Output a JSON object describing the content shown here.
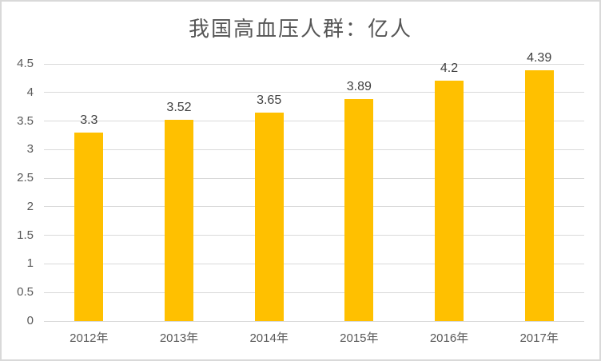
{
  "chart_data": {
    "type": "bar",
    "title": "我国高血压人群：亿人",
    "categories": [
      "2012年",
      "2013年",
      "2014年",
      "2015年",
      "2016年",
      "2017年"
    ],
    "values": [
      3.3,
      3.52,
      3.65,
      3.89,
      4.2,
      4.39
    ],
    "data_labels": [
      "3.3",
      "3.52",
      "3.65",
      "3.89",
      "4.2",
      "4.39"
    ],
    "xlabel": "",
    "ylabel": "",
    "ylim": [
      0,
      4.5
    ],
    "ytick_step": 0.5,
    "yticks": [
      "0",
      "0.5",
      "1",
      "1.5",
      "2",
      "2.5",
      "3",
      "3.5",
      "4",
      "4.5"
    ],
    "grid": true,
    "legend_position": "none",
    "colors": {
      "bar": "#FFC000",
      "gridline": "#D9D9D9",
      "axis_line": "#D9D9D9",
      "axis_labels": "#595959",
      "data_labels": "#404040",
      "title": "#555555",
      "frame_border": "#D9D9D9",
      "background": "#FFFFFF"
    }
  }
}
